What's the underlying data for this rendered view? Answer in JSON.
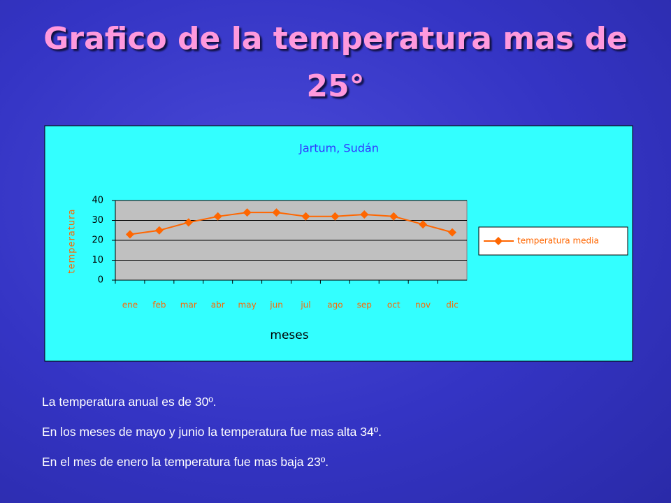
{
  "slide_title": "Grafico de la temperatura mas de 25°",
  "chart_data": {
    "type": "line",
    "title": "Jartum, Sudán",
    "x_label": "meses",
    "y_label": "temperatura",
    "categories": [
      "ene",
      "feb",
      "mar",
      "abr",
      "may",
      "jun",
      "jul",
      "ago",
      "sep",
      "oct",
      "nov",
      "dic"
    ],
    "series": [
      {
        "name": "temperatura media",
        "color": "#ff6600",
        "values": [
          23,
          25,
          29,
          32,
          34,
          34,
          32,
          32,
          33,
          32,
          28,
          24
        ]
      }
    ],
    "ylim": [
      0,
      40
    ],
    "yticks": [
      0,
      10,
      20,
      30,
      40
    ],
    "grid": true,
    "legend": "right"
  },
  "notes": [
    "La temperatura anual es de 30º.",
    "En los meses de mayo y junio la temperatura fue mas alta 34º.",
    "En el mes de  enero la temperatura fue mas baja 23º."
  ]
}
